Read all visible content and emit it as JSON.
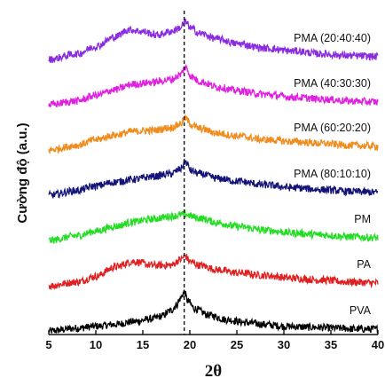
{
  "chart_data": {
    "type": "line",
    "xlabel": "2θ",
    "ylabel": "Cường độ (a.u.)",
    "xlim": [
      5,
      40
    ],
    "xticks": [
      5,
      10,
      15,
      20,
      25,
      30,
      35,
      40
    ],
    "xtick_labels": [
      "5",
      "10",
      "15",
      "20",
      "25",
      "30",
      "35",
      "40"
    ],
    "reference_line_x": 19.4,
    "grid": false,
    "legend": "inline labels at right end of each curve",
    "series": [
      {
        "name": "PVA",
        "color": "#000000",
        "offset": 0,
        "noise": 4,
        "x": [
          5,
          8,
          10,
          12,
          14,
          16,
          17,
          18,
          18.6,
          19,
          19.4,
          19.8,
          20.5,
          22,
          24,
          26,
          28,
          30,
          33,
          36,
          38,
          40
        ],
        "y": [
          0,
          3,
          5,
          7,
          10,
          13,
          16,
          22,
          28,
          35,
          42,
          32,
          24,
          17,
          12,
          9,
          7,
          5,
          4,
          3,
          2,
          2
        ]
      },
      {
        "name": "PA",
        "color": "#e02020",
        "offset": 1,
        "noise": 4,
        "x": [
          5,
          8,
          10,
          12,
          14,
          16,
          18,
          19,
          19.5,
          20,
          21,
          23,
          25,
          28,
          31,
          34,
          37,
          40
        ],
        "y": [
          0,
          4,
          10,
          20,
          26,
          22,
          22,
          28,
          32,
          26,
          22,
          17,
          14,
          11,
          8,
          6,
          4,
          3
        ]
      },
      {
        "name": "PM",
        "color": "#22dd22",
        "offset": 2,
        "noise": 4,
        "x": [
          5,
          8,
          10,
          12,
          14,
          16,
          18,
          19.4,
          21,
          23,
          25,
          28,
          31,
          34,
          37,
          40
        ],
        "y": [
          0,
          5,
          10,
          15,
          20,
          23,
          26,
          28,
          24,
          19,
          15,
          11,
          8,
          6,
          4,
          3
        ]
      },
      {
        "name": "PMA (80:10:10)",
        "color": "#141478",
        "offset": 3,
        "noise": 4,
        "x": [
          5,
          8,
          10,
          12,
          14,
          16,
          18,
          19,
          19.5,
          20.2,
          21,
          23,
          25,
          28,
          31,
          34,
          37,
          40
        ],
        "y": [
          0,
          5,
          10,
          14,
          17,
          20,
          23,
          28,
          36,
          26,
          23,
          18,
          15,
          11,
          8,
          6,
          4,
          3
        ]
      },
      {
        "name": "PMA (60:20:20)",
        "color": "#f08c1e",
        "offset": 4,
        "noise": 4,
        "x": [
          5,
          8,
          10,
          12,
          14,
          16,
          18,
          19,
          19.5,
          20.2,
          21,
          23,
          25,
          28,
          31,
          34,
          37,
          40
        ],
        "y": [
          0,
          5,
          11,
          16,
          20,
          21,
          24,
          28,
          34,
          27,
          23,
          18,
          15,
          11,
          9,
          7,
          5,
          4
        ]
      },
      {
        "name": "PMA (40:30:30)",
        "color": "#e020e0",
        "offset": 5,
        "noise": 4,
        "x": [
          5,
          8,
          10,
          12,
          14,
          16,
          18,
          19,
          19.5,
          20.2,
          21,
          23,
          25,
          28,
          31,
          34,
          37,
          40
        ],
        "y": [
          0,
          4,
          10,
          16,
          22,
          24,
          27,
          32,
          40,
          30,
          25,
          19,
          15,
          11,
          8,
          6,
          4,
          3
        ]
      },
      {
        "name": "PMA (20:40:40)",
        "color": "#8a2be2",
        "offset": 6,
        "noise": 4,
        "x": [
          5,
          8,
          10,
          12,
          13.5,
          15,
          16.5,
          18,
          19,
          19.5,
          20.2,
          21,
          23,
          25,
          28,
          31,
          34,
          37,
          40
        ],
        "y": [
          0,
          6,
          14,
          24,
          32,
          30,
          26,
          30,
          34,
          40,
          33,
          28,
          22,
          17,
          12,
          9,
          6,
          4,
          3
        ]
      }
    ]
  }
}
